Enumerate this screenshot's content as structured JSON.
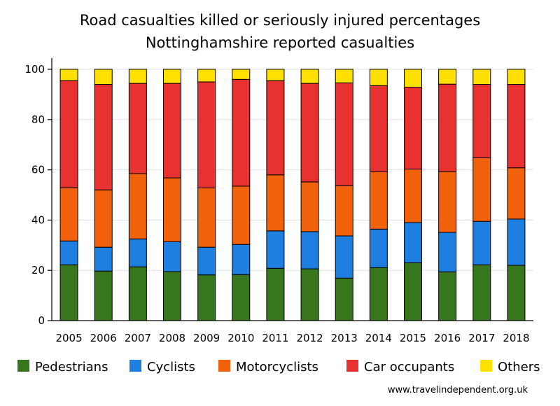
{
  "chart_data": {
    "type": "bar",
    "stacked": true,
    "title_lines": [
      "Road casualties killed or seriously injured percentages",
      "Nottinghamshire reported casualties"
    ],
    "xlabel": "",
    "ylabel": "",
    "ylim": [
      0,
      100
    ],
    "yticks": [
      "0",
      "20",
      "40",
      "60",
      "80",
      "100"
    ],
    "grid": true,
    "legend_position": "bottom",
    "categories": [
      "2005",
      "2006",
      "2007",
      "2008",
      "2009",
      "2010",
      "2011",
      "2012",
      "2013",
      "2014",
      "2015",
      "2016",
      "2017",
      "2018"
    ],
    "series": [
      {
        "name": "Pedestrians",
        "color": "#38761d",
        "values": [
          22.2,
          19.7,
          21.4,
          19.5,
          18.2,
          18.3,
          20.8,
          20.6,
          16.9,
          21.1,
          23.0,
          19.4,
          22.2,
          22.0
        ]
      },
      {
        "name": "Cyclists",
        "color": "#1e7fe0",
        "values": [
          9.5,
          9.5,
          11.1,
          11.9,
          11.0,
          12.0,
          14.9,
          14.8,
          16.8,
          15.3,
          16.0,
          15.7,
          17.3,
          18.4
        ]
      },
      {
        "name": "Motorcyclists",
        "color": "#f2620c",
        "values": [
          21.2,
          22.8,
          26.0,
          25.4,
          23.6,
          23.2,
          22.3,
          19.8,
          20.0,
          22.8,
          21.3,
          24.2,
          25.3,
          20.4
        ]
      },
      {
        "name": "Car occupants",
        "color": "#e83232",
        "values": [
          42.6,
          42.0,
          35.9,
          37.6,
          42.2,
          42.5,
          37.5,
          39.2,
          40.9,
          34.3,
          32.6,
          34.8,
          29.2,
          33.2
        ]
      },
      {
        "name": "Others",
        "color": "#ffe000",
        "values": [
          4.5,
          6.0,
          5.6,
          5.6,
          5.0,
          4.0,
          4.5,
          5.6,
          5.4,
          6.5,
          7.1,
          5.9,
          6.0,
          6.0
        ]
      }
    ]
  },
  "source_text": "www.travelindependent.org.uk"
}
